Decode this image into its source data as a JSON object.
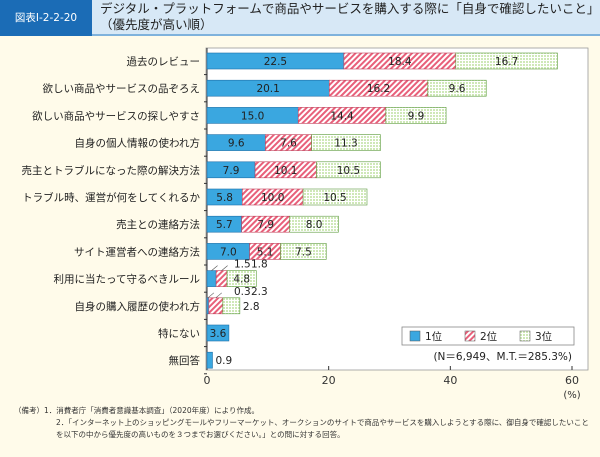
{
  "figure_label": "図表Ⅰ-2-2-20",
  "title": "デジタル・プラットフォームで商品やサービスを購入する際に「自身で確認したいこと」（優先度が高い順）",
  "chart_data": {
    "type": "bar",
    "orientation": "horizontal-stacked",
    "categories": [
      "過去のレビュー",
      "欲しい商品やサービスの品ぞろえ",
      "欲しい商品やサービスの探しやすさ",
      "自身の個人情報の使われ方",
      "売主とトラブルになった際の解決方法",
      "トラブル時、運営が何をしてくれるか",
      "売主との連絡方法",
      "サイト運営者への連絡方法",
      "利用に当たって守るべきルール",
      "自身の購入履歴の使われ方",
      "特にない",
      "無回答"
    ],
    "series": [
      {
        "name": "1位",
        "color": "#3aa7e0",
        "values": [
          22.5,
          20.1,
          15.0,
          9.6,
          7.9,
          5.8,
          5.7,
          7.0,
          1.5,
          0.3,
          3.6,
          0.9
        ]
      },
      {
        "name": "2位",
        "color": "#e8607a",
        "values": [
          18.4,
          16.2,
          14.4,
          7.6,
          10.1,
          10.0,
          7.9,
          5.1,
          1.8,
          2.3,
          null,
          null
        ]
      },
      {
        "name": "3位",
        "color": "#7cc04a",
        "values": [
          16.7,
          9.6,
          9.9,
          11.3,
          10.5,
          10.5,
          8.0,
          7.5,
          4.8,
          2.8,
          null,
          null
        ]
      }
    ],
    "xlim": [
      0,
      60
    ],
    "xticks": [
      0,
      20,
      40,
      60
    ],
    "xunit": "(%)",
    "legend_position": "bottom-right",
    "annotation": "(N＝6,949、M.T.＝285.3%)"
  },
  "notes": [
    {
      "label": "（備考）",
      "text": "1．消費者庁「消費者意識基本調査」（2020年度）により作成。"
    },
    {
      "label": "",
      "text": "2．「インターネット上のショッピングモールやフリーマーケット、オークションのサイトで商品やサービスを購入しようとする際に、御自身で確認したいことを以下の中から優先度の高いものを３つまでお選びください。」との問に対する回答。"
    }
  ]
}
